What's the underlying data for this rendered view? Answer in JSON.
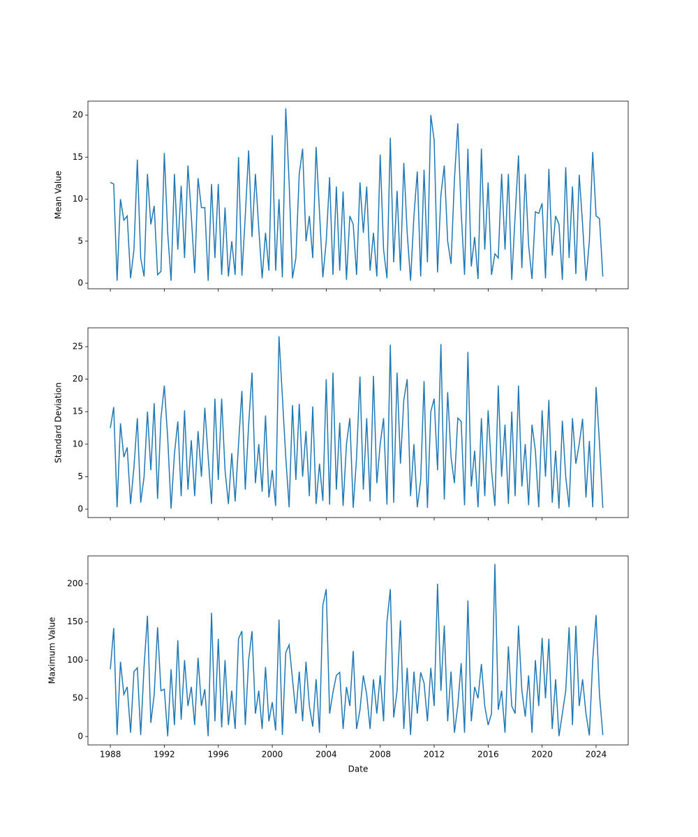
{
  "chart_data": {
    "type": "line",
    "color": "#1f77b4",
    "xlabel": "Date",
    "x": [
      1988,
      1988.25,
      1988.5,
      1988.75,
      1989,
      1989.25,
      1989.5,
      1989.75,
      1990,
      1990.25,
      1990.5,
      1990.75,
      1991,
      1991.25,
      1991.5,
      1991.75,
      1992,
      1992.25,
      1992.5,
      1992.75,
      1993,
      1993.25,
      1993.5,
      1993.75,
      1994,
      1994.25,
      1994.5,
      1994.75,
      1995,
      1995.25,
      1995.5,
      1995.75,
      1996,
      1996.25,
      1996.5,
      1996.75,
      1997,
      1997.25,
      1997.5,
      1997.75,
      1998,
      1998.25,
      1998.5,
      1998.75,
      1999,
      1999.25,
      1999.5,
      1999.75,
      2000,
      2000.25,
      2000.5,
      2000.75,
      2001,
      2001.25,
      2001.5,
      2001.75,
      2002,
      2002.25,
      2002.5,
      2002.75,
      2003,
      2003.25,
      2003.5,
      2003.75,
      2004,
      2004.25,
      2004.5,
      2004.75,
      2005,
      2005.25,
      2005.5,
      2005.75,
      2006,
      2006.25,
      2006.5,
      2006.75,
      2007,
      2007.25,
      2007.5,
      2007.75,
      2008,
      2008.25,
      2008.5,
      2008.75,
      2009,
      2009.25,
      2009.5,
      2009.75,
      2010,
      2010.25,
      2010.5,
      2010.75,
      2011,
      2011.25,
      2011.5,
      2011.75,
      2012,
      2012.25,
      2012.5,
      2012.75,
      2013,
      2013.25,
      2013.5,
      2013.75,
      2014,
      2014.25,
      2014.5,
      2014.75,
      2015,
      2015.25,
      2015.5,
      2015.75,
      2016,
      2016.25,
      2016.5,
      2016.75,
      2017,
      2017.25,
      2017.5,
      2017.75,
      2018,
      2018.25,
      2018.5,
      2018.75,
      2019,
      2019.25,
      2019.5,
      2019.75,
      2020,
      2020.25,
      2020.5,
      2020.75,
      2021,
      2021.25,
      2021.5,
      2021.75,
      2022,
      2022.25,
      2022.5,
      2022.75,
      2023,
      2023.25,
      2023.5,
      2023.75,
      2024,
      2024.25,
      2024.5
    ],
    "xlim": [
      1986.34,
      2026.38
    ],
    "xticks": [
      1988,
      1992,
      1996,
      2000,
      2004,
      2008,
      2012,
      2016,
      2020,
      2024
    ],
    "panels": [
      {
        "ylabel": "Mean Value",
        "ylim": [
          -0.66,
          21.66
        ],
        "yticks": [
          0,
          5,
          10,
          15,
          20
        ],
        "values": [
          12,
          11.8,
          0.3,
          10,
          7.5,
          8,
          0.6,
          4,
          14.7,
          3,
          0.8,
          13,
          7,
          9.2,
          1,
          1.4,
          15.5,
          6,
          0.3,
          13,
          4,
          11.6,
          3,
          14,
          8,
          1.2,
          12.5,
          9,
          9,
          0.3,
          11.8,
          3,
          11.8,
          1,
          9,
          0.8,
          5,
          1,
          15,
          0.9,
          8,
          15.8,
          5.5,
          13,
          6.5,
          0.6,
          6,
          1.5,
          17.6,
          1.5,
          10,
          0.7,
          20.8,
          12,
          0.6,
          3,
          13,
          16,
          5,
          8,
          3,
          16.2,
          8.5,
          0.7,
          5,
          12.6,
          1,
          11.5,
          1.5,
          10.9,
          0.4,
          8,
          7,
          1,
          12,
          6,
          11.5,
          1.5,
          6,
          0.8,
          15.3,
          4,
          0.6,
          17.3,
          2.5,
          11,
          1.5,
          14.3,
          6,
          0.3,
          8,
          13.3,
          0.8,
          13.5,
          2.5,
          20,
          17,
          1.3,
          10.5,
          14,
          5,
          2.3,
          12.3,
          19,
          8.5,
          1,
          16,
          2,
          5.5,
          0.5,
          16,
          4,
          12,
          1,
          3.5,
          3,
          13,
          4,
          13,
          0.4,
          8,
          15.2,
          1.8,
          13,
          4.5,
          0.5,
          8.5,
          8.3,
          9.5,
          0.6,
          13.6,
          3.3,
          8,
          7,
          0.4,
          13.8,
          3,
          11.5,
          1.1,
          12.9,
          7,
          0.3,
          5,
          15.6,
          8,
          7.7,
          0.8
        ]
      },
      {
        "ylabel": "Standard Deviation",
        "ylim": [
          -1.29,
          27.9
        ],
        "yticks": [
          0,
          5,
          10,
          15,
          20,
          25
        ],
        "values": [
          12.5,
          15.7,
          0.3,
          13.2,
          8,
          9.5,
          0.8,
          6.5,
          14,
          1,
          5,
          15,
          6,
          16.3,
          1.6,
          14,
          19,
          11,
          0.1,
          8.5,
          13.5,
          2,
          15.2,
          3,
          10.6,
          2,
          12,
          5,
          15.6,
          8,
          0.8,
          17,
          4.5,
          17,
          6,
          0.8,
          8.6,
          1.2,
          10,
          18.2,
          3,
          13,
          21,
          4,
          10,
          2.7,
          14.4,
          1.8,
          6,
          0.5,
          26.6,
          17.3,
          8,
          0.3,
          16,
          4.5,
          16.2,
          5,
          12,
          2,
          15.8,
          0.8,
          7,
          1.3,
          20,
          0.7,
          21,
          3,
          13.3,
          0.5,
          10,
          14,
          0.2,
          8,
          20.4,
          3,
          14,
          1.2,
          20.5,
          4,
          10,
          14,
          0.7,
          25.3,
          1,
          21,
          7,
          16.8,
          20,
          2,
          10,
          0.3,
          4.5,
          19.7,
          0.2,
          15,
          17,
          6,
          25.4,
          1.5,
          18,
          8,
          4,
          14,
          13.5,
          0.6,
          24.2,
          3.5,
          9,
          0.3,
          14,
          2,
          15.2,
          6,
          0.5,
          19,
          5,
          13,
          0.8,
          15,
          2,
          19,
          3.5,
          10,
          0.6,
          13,
          9,
          0.3,
          15.2,
          5,
          16.8,
          1,
          9,
          0.1,
          13.6,
          5,
          0.3,
          14,
          7,
          10,
          13.9,
          1.8,
          10.5,
          0.3,
          18.8,
          10.2,
          0.2
        ]
      },
      {
        "ylabel": "Maximum Value",
        "ylim": [
          -11,
          236.5
        ],
        "yticks": [
          0,
          50,
          100,
          150,
          200
        ],
        "values": [
          88,
          142,
          2,
          98,
          55,
          65,
          5,
          85,
          90,
          2,
          92,
          158,
          18,
          55,
          143,
          60,
          62,
          0.5,
          88,
          15,
          126,
          22,
          100,
          40,
          65,
          15,
          103,
          40,
          62,
          0.5,
          162,
          20,
          128,
          12,
          100,
          15,
          60,
          10,
          128,
          138,
          15,
          100,
          138,
          30,
          60,
          10,
          91,
          20,
          45,
          8,
          153,
          2,
          110,
          120,
          75,
          30,
          85,
          20,
          98,
          40,
          13,
          75,
          5,
          172,
          193,
          30,
          58,
          80,
          84,
          10,
          65,
          40,
          112,
          10,
          35,
          80,
          55,
          10,
          75,
          30,
          80,
          20,
          150,
          193,
          25,
          60,
          152,
          10,
          90,
          2,
          85,
          30,
          84,
          70,
          20,
          90,
          40,
          200,
          60,
          145,
          20,
          85,
          5,
          40,
          96,
          5,
          178,
          20,
          65,
          50,
          95,
          40,
          15,
          30,
          226,
          35,
          60,
          5,
          118,
          40,
          30,
          145,
          60,
          26,
          80,
          5,
          100,
          40,
          129,
          50,
          128,
          10,
          75,
          0.5,
          30,
          60,
          143,
          15,
          145,
          40,
          75,
          30,
          1.5,
          100,
          159,
          55,
          2
        ]
      }
    ]
  }
}
